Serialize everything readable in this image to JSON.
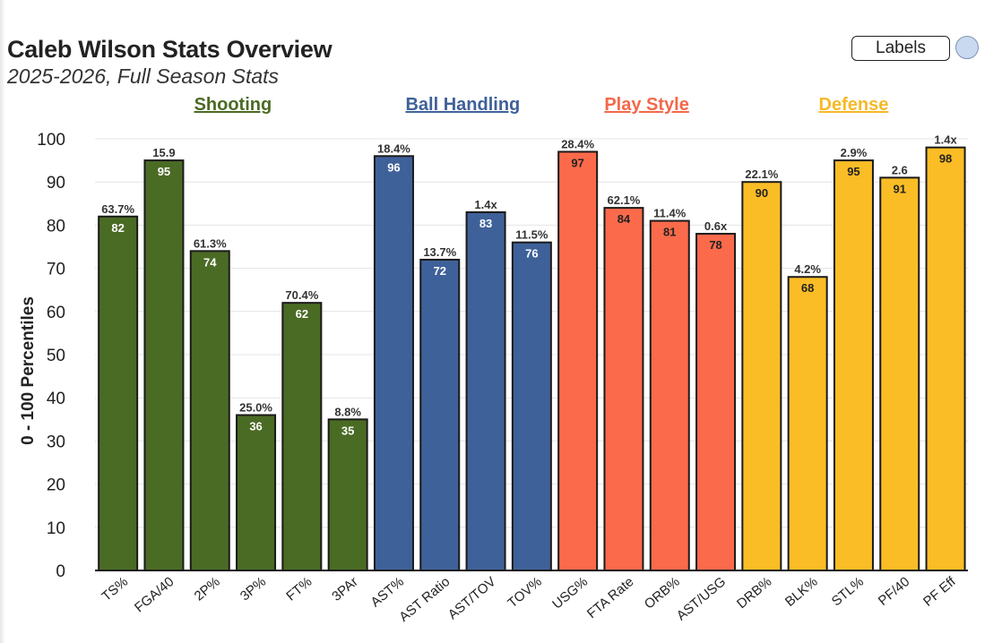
{
  "header": {
    "title": "Caleb Wilson Stats Overview",
    "subtitle": "2025-2026, Full Season Stats",
    "labels_button": "Labels"
  },
  "chart_data": {
    "type": "bar",
    "title": "Caleb Wilson Stats Overview",
    "subtitle": "2025-2026, Full Season Stats",
    "xlabel": "",
    "ylabel": "0 - 100 Percentiles",
    "ylim": [
      0,
      100
    ],
    "yticks": [
      0,
      10,
      20,
      30,
      40,
      50,
      60,
      70,
      80,
      90,
      100
    ],
    "grid": true,
    "groups": [
      {
        "name": "Shooting",
        "color": "#4a6b24",
        "text_color": "#ffffff",
        "label_color": "#4a6b24",
        "bars": [
          {
            "category": "TS%",
            "percentile": 82,
            "stat": "63.7%"
          },
          {
            "category": "FGA/40",
            "percentile": 95,
            "stat": "15.9"
          },
          {
            "category": "2P%",
            "percentile": 74,
            "stat": "61.3%"
          },
          {
            "category": "3P%",
            "percentile": 36,
            "stat": "25.0%"
          },
          {
            "category": "FT%",
            "percentile": 62,
            "stat": "70.4%"
          },
          {
            "category": "3PAr",
            "percentile": 35,
            "stat": "8.8%"
          }
        ]
      },
      {
        "name": "Ball Handling",
        "color": "#3f6199",
        "text_color": "#ffffff",
        "label_color": "#3f6199",
        "bars": [
          {
            "category": "AST%",
            "percentile": 96,
            "stat": "18.4%"
          },
          {
            "category": "AST Ratio",
            "percentile": 72,
            "stat": "13.7%"
          },
          {
            "category": "AST/TOV",
            "percentile": 83,
            "stat": "1.4x"
          },
          {
            "category": "TOV%",
            "percentile": 76,
            "stat": "11.5%"
          }
        ]
      },
      {
        "name": "Play Style",
        "color": "#fb6a4b",
        "text_color": "#222222",
        "label_color": "#f4684a",
        "bars": [
          {
            "category": "USG%",
            "percentile": 97,
            "stat": "28.4%"
          },
          {
            "category": "FTA Rate",
            "percentile": 84,
            "stat": "62.1%"
          },
          {
            "category": "ORB%",
            "percentile": 81,
            "stat": "11.4%"
          },
          {
            "category": "AST/USG",
            "percentile": 78,
            "stat": "0.6x"
          }
        ]
      },
      {
        "name": "Defense",
        "color": "#fbbd26",
        "text_color": "#222222",
        "label_color": "#f6b928",
        "bars": [
          {
            "category": "DRB%",
            "percentile": 90,
            "stat": "22.1%"
          },
          {
            "category": "BLK%",
            "percentile": 68,
            "stat": "4.2%"
          },
          {
            "category": "STL%",
            "percentile": 95,
            "stat": "2.9%"
          },
          {
            "category": "PF/40",
            "percentile": 91,
            "stat": "2.6"
          },
          {
            "category": "PF Eff",
            "percentile": 98,
            "stat": "1.4x"
          }
        ]
      }
    ]
  }
}
